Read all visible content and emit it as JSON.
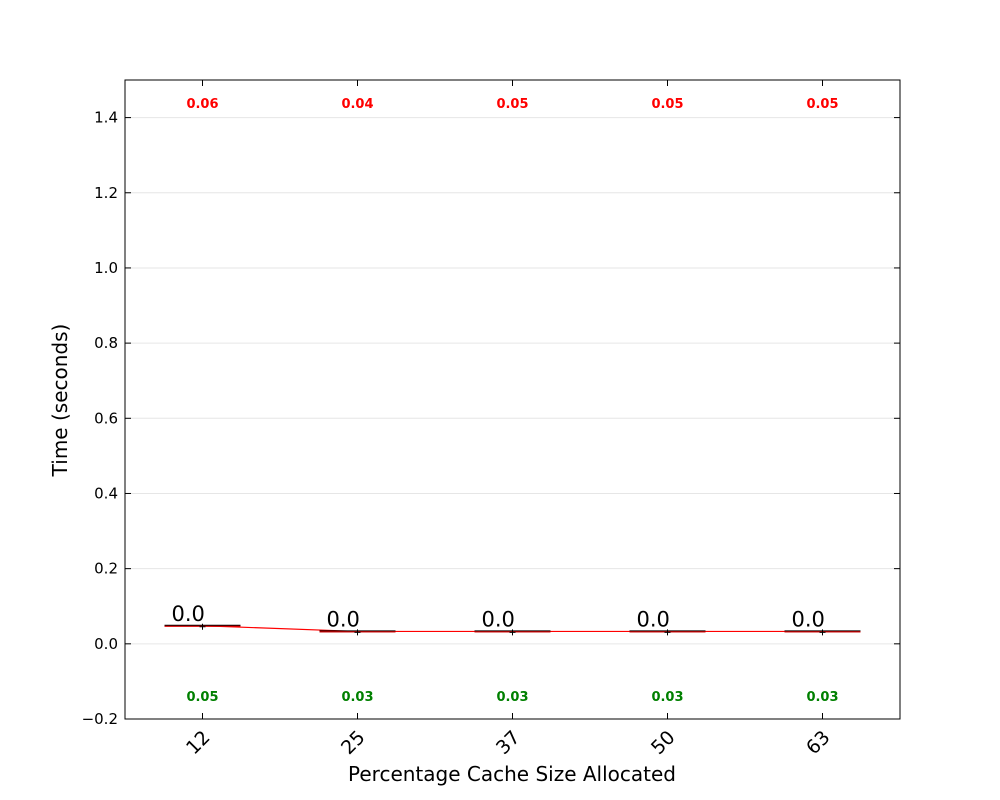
{
  "chart_data": {
    "type": "box",
    "categories": [
      "12",
      "25",
      "37",
      "50",
      "63"
    ],
    "medians": [
      0.048,
      0.033,
      0.033,
      0.033,
      0.033
    ],
    "means": [
      0.048,
      0.033,
      0.033,
      0.033,
      0.033
    ],
    "median_labels": [
      "0.0",
      "0.0",
      "0.0",
      "0.0",
      "0.0"
    ],
    "max_labels": [
      "0.06",
      "0.04",
      "0.05",
      "0.05",
      "0.05"
    ],
    "min_labels": [
      "0.05",
      "0.03",
      "0.03",
      "0.03",
      "0.03"
    ],
    "xlabel": "Percentage Cache Size Allocated",
    "ylabel": "Time (seconds)",
    "ylim": [
      -0.2,
      1.5
    ],
    "yticks": [
      "−0.2",
      "0.0",
      "0.2",
      "0.4",
      "0.6",
      "0.8",
      "1.0",
      "1.2",
      "1.4"
    ],
    "ytick_values": [
      -0.2,
      0.0,
      0.2,
      0.4,
      0.6,
      0.8,
      1.0,
      1.2,
      1.4
    ],
    "grid": true,
    "colors": {
      "mean_line": "#ff0000",
      "median_line": "#ff0000",
      "max_labels": "#ff0000",
      "min_labels": "#008000",
      "box": "#000000"
    }
  }
}
